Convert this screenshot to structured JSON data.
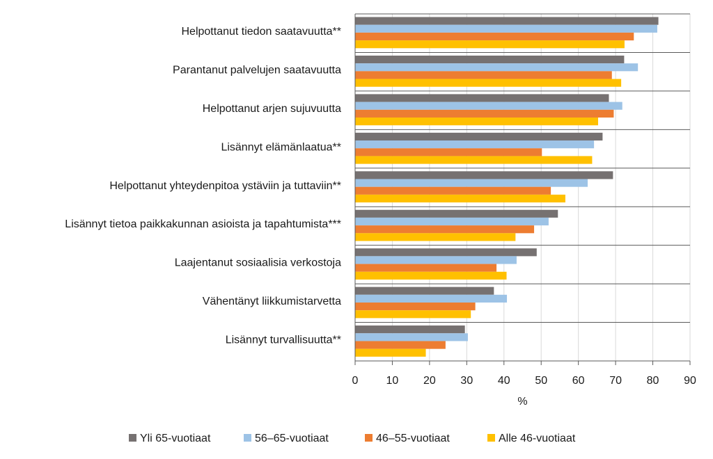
{
  "chart_data": {
    "type": "bar",
    "orientation": "horizontal",
    "categories": [
      "Helpottanut tiedon saatavuutta**",
      "Parantanut palvelujen saatavuutta",
      "Helpottanut arjen sujuvuutta",
      "Lisännyt elämänlaatua**",
      "Helpottanut yhteydenpitoa ystäviin ja tuttaviin**",
      "Lisännyt tietoa paikkakunnan asioista ja tapahtumista***",
      "Laajentanut sosiaalisia verkostoja",
      "Vähentänyt liikkumistarvetta",
      "Lisännyt turvallisuutta**"
    ],
    "series": [
      {
        "name": "Yli 65-vuotiaat",
        "color": "#767171",
        "values": [
          81.5,
          72.3,
          68.2,
          66.5,
          69.3,
          54.5,
          48.8,
          37.3,
          29.5
        ]
      },
      {
        "name": "56–65-vuotiaat",
        "color": "#9DC3E6",
        "values": [
          81.2,
          76.0,
          71.8,
          64.2,
          62.5,
          52.0,
          43.4,
          40.8,
          30.3
        ]
      },
      {
        "name": "46–55-vuotiaat",
        "color": "#ED7D31",
        "values": [
          74.9,
          69.0,
          69.5,
          50.2,
          52.6,
          48.1,
          38.0,
          32.3,
          24.3
        ]
      },
      {
        "name": "Alle 46-vuotiaat",
        "color": "#FFC000",
        "values": [
          72.4,
          71.5,
          65.3,
          63.7,
          56.5,
          43.1,
          40.7,
          31.1,
          19.0
        ]
      }
    ],
    "xlabel": "%",
    "ylabel": "",
    "xlim": [
      0,
      90
    ],
    "xticks": [
      "0",
      "10",
      "20",
      "30",
      "40",
      "50",
      "60",
      "70",
      "80",
      "90"
    ],
    "grid": "vertical",
    "category_separators": true,
    "legend": "bottom"
  }
}
